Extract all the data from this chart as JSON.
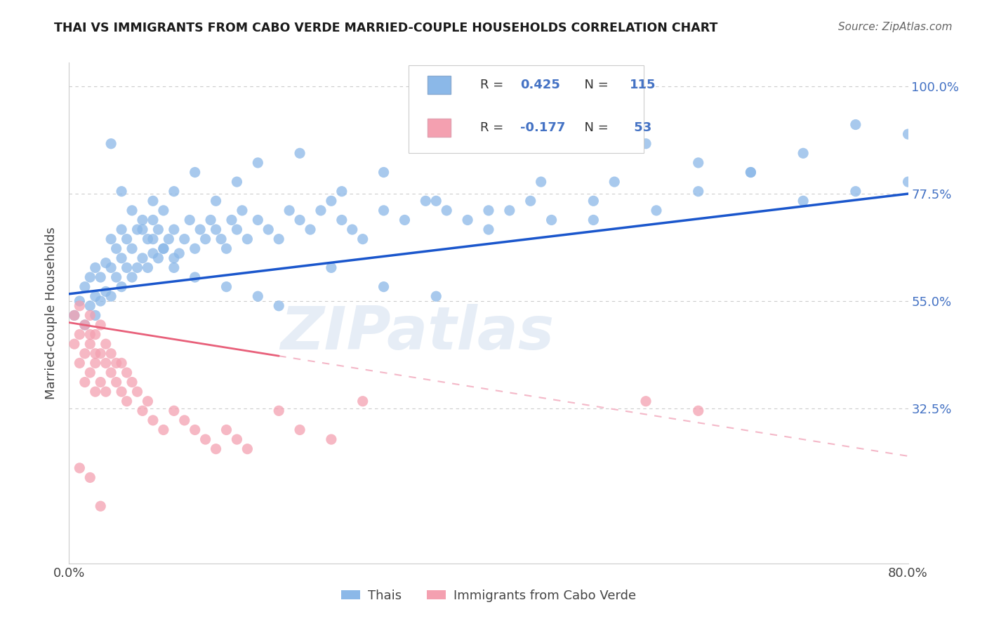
{
  "title": "THAI VS IMMIGRANTS FROM CABO VERDE MARRIED-COUPLE HOUSEHOLDS CORRELATION CHART",
  "source_text": "Source: ZipAtlas.com",
  "ylabel": "Married-couple Households",
  "legend_label1": "Thais",
  "legend_label2": "Immigrants from Cabo Verde",
  "color_blue": "#8BB8E8",
  "color_pink": "#F4A0B0",
  "color_line_blue": "#1A56CC",
  "color_line_pink_solid": "#E8607A",
  "color_line_pink_dashed": "#F4B8C8",
  "color_title": "#1a1a1a",
  "color_source": "#666666",
  "color_axis": "#4472C4",
  "color_gridline": "#CCCCCC",
  "xmin": 0.0,
  "xmax": 0.8,
  "ymin": 0.0,
  "ymax": 1.05,
  "ytick_vals": [
    0.325,
    0.55,
    0.775,
    1.0
  ],
  "ytick_labs": [
    "32.5%",
    "55.0%",
    "77.5%",
    "100.0%"
  ],
  "blue_line_x0": 0.0,
  "blue_line_y0": 0.565,
  "blue_line_x1": 0.8,
  "blue_line_y1": 0.775,
  "pink_line_x0": 0.0,
  "pink_line_y0": 0.505,
  "pink_line_x1_solid": 0.2,
  "pink_line_y1_solid": 0.435,
  "pink_line_x1_dashed": 0.8,
  "pink_line_y1_dashed": 0.225,
  "watermark_text": "ZIPatlas",
  "thai_x": [
    0.005,
    0.01,
    0.015,
    0.015,
    0.02,
    0.02,
    0.025,
    0.025,
    0.025,
    0.03,
    0.03,
    0.035,
    0.035,
    0.04,
    0.04,
    0.04,
    0.045,
    0.045,
    0.05,
    0.05,
    0.05,
    0.055,
    0.055,
    0.06,
    0.06,
    0.065,
    0.065,
    0.07,
    0.07,
    0.075,
    0.075,
    0.08,
    0.08,
    0.085,
    0.085,
    0.09,
    0.09,
    0.095,
    0.1,
    0.1,
    0.105,
    0.11,
    0.115,
    0.12,
    0.125,
    0.13,
    0.135,
    0.14,
    0.145,
    0.15,
    0.155,
    0.16,
    0.165,
    0.17,
    0.18,
    0.19,
    0.2,
    0.21,
    0.22,
    0.23,
    0.24,
    0.25,
    0.26,
    0.27,
    0.28,
    0.3,
    0.32,
    0.34,
    0.36,
    0.38,
    0.4,
    0.42,
    0.44,
    0.46,
    0.5,
    0.52,
    0.56,
    0.6,
    0.65,
    0.7,
    0.75,
    0.8,
    0.08,
    0.1,
    0.12,
    0.14,
    0.16,
    0.18,
    0.22,
    0.26,
    0.3,
    0.35,
    0.4,
    0.45,
    0.5,
    0.55,
    0.6,
    0.65,
    0.7,
    0.75,
    0.8,
    0.04,
    0.05,
    0.06,
    0.07,
    0.08,
    0.09,
    0.1,
    0.12,
    0.15,
    0.18,
    0.2,
    0.25,
    0.3,
    0.35,
    0.4,
    0.45
  ],
  "thai_y": [
    0.52,
    0.55,
    0.5,
    0.58,
    0.54,
    0.6,
    0.52,
    0.56,
    0.62,
    0.55,
    0.6,
    0.57,
    0.63,
    0.56,
    0.62,
    0.68,
    0.6,
    0.66,
    0.58,
    0.64,
    0.7,
    0.62,
    0.68,
    0.6,
    0.66,
    0.62,
    0.7,
    0.64,
    0.72,
    0.62,
    0.68,
    0.65,
    0.72,
    0.64,
    0.7,
    0.66,
    0.74,
    0.68,
    0.62,
    0.7,
    0.65,
    0.68,
    0.72,
    0.66,
    0.7,
    0.68,
    0.72,
    0.7,
    0.68,
    0.66,
    0.72,
    0.7,
    0.74,
    0.68,
    0.72,
    0.7,
    0.68,
    0.74,
    0.72,
    0.7,
    0.74,
    0.76,
    0.72,
    0.7,
    0.68,
    0.74,
    0.72,
    0.76,
    0.74,
    0.72,
    0.7,
    0.74,
    0.76,
    0.72,
    0.76,
    0.8,
    0.74,
    0.78,
    0.82,
    0.76,
    0.78,
    0.8,
    0.76,
    0.78,
    0.82,
    0.76,
    0.8,
    0.84,
    0.86,
    0.78,
    0.82,
    0.76,
    0.74,
    0.8,
    0.72,
    0.88,
    0.84,
    0.82,
    0.86,
    0.92,
    0.9,
    0.88,
    0.78,
    0.74,
    0.7,
    0.68,
    0.66,
    0.64,
    0.6,
    0.58,
    0.56,
    0.54,
    0.62,
    0.58,
    0.56
  ],
  "cabo_x": [
    0.005,
    0.005,
    0.01,
    0.01,
    0.01,
    0.015,
    0.015,
    0.015,
    0.02,
    0.02,
    0.02,
    0.02,
    0.025,
    0.025,
    0.025,
    0.025,
    0.03,
    0.03,
    0.03,
    0.035,
    0.035,
    0.035,
    0.04,
    0.04,
    0.045,
    0.045,
    0.05,
    0.05,
    0.055,
    0.055,
    0.06,
    0.065,
    0.07,
    0.075,
    0.08,
    0.09,
    0.1,
    0.11,
    0.12,
    0.13,
    0.14,
    0.15,
    0.16,
    0.17,
    0.2,
    0.22,
    0.25,
    0.28,
    0.55,
    0.6,
    0.01,
    0.02,
    0.03
  ],
  "cabo_y": [
    0.46,
    0.52,
    0.42,
    0.48,
    0.54,
    0.38,
    0.44,
    0.5,
    0.4,
    0.46,
    0.52,
    0.48,
    0.36,
    0.42,
    0.48,
    0.44,
    0.38,
    0.44,
    0.5,
    0.36,
    0.42,
    0.46,
    0.4,
    0.44,
    0.38,
    0.42,
    0.36,
    0.42,
    0.34,
    0.4,
    0.38,
    0.36,
    0.32,
    0.34,
    0.3,
    0.28,
    0.32,
    0.3,
    0.28,
    0.26,
    0.24,
    0.28,
    0.26,
    0.24,
    0.32,
    0.28,
    0.26,
    0.34,
    0.34,
    0.32,
    0.2,
    0.18,
    0.12
  ]
}
